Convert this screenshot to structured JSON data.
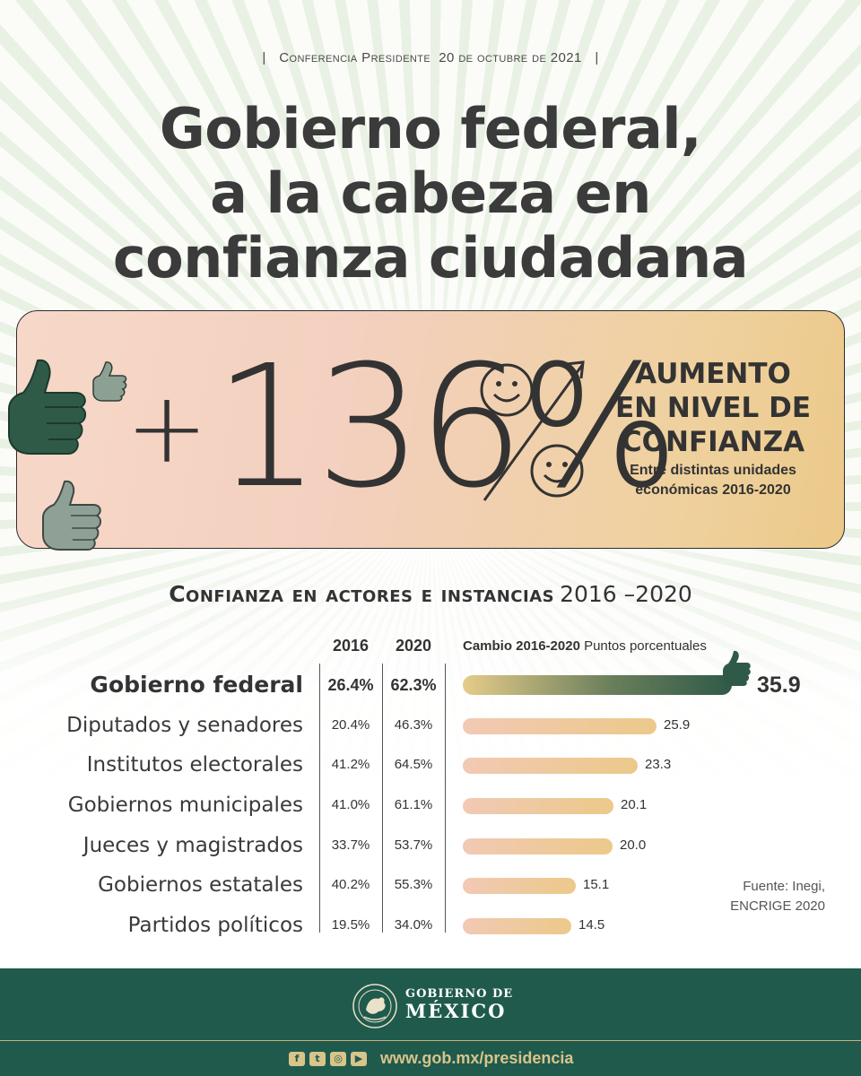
{
  "header": {
    "conference": "Conferencia Presidente  20 de octubre de 2021",
    "divider": "|"
  },
  "title": {
    "line1": "Gobierno federal,",
    "line2": "a la cabeza en",
    "line3": "confianza ciudadana"
  },
  "hero": {
    "plus": "+",
    "value": "136%",
    "heading_line1": "AUMENTO",
    "heading_line2": "EN NIVEL DE",
    "heading_line3": "CONFIANZA",
    "sub_line1": "Entre distintas unidades",
    "sub_line2": "económicas 2016-2020"
  },
  "section": {
    "title": "Confianza en actores e instancias",
    "years": "2016 –2020"
  },
  "table": {
    "col_2016": "2016",
    "col_2020": "2020",
    "cambio_bold": "Cambio 2016-2020",
    "cambio_rest": " Puntos porcentuales",
    "max_change": 35.9,
    "rows": [
      {
        "label": "Gobierno federal",
        "v2016": "26.4%",
        "v2020": "62.3%",
        "change": 35.9,
        "change_label": "35.9"
      },
      {
        "label": "Diputados y senadores",
        "v2016": "20.4%",
        "v2020": "46.3%",
        "change": 25.9,
        "change_label": "25.9"
      },
      {
        "label": "Institutos electorales",
        "v2016": "41.2%",
        "v2020": "64.5%",
        "change": 23.3,
        "change_label": "23.3"
      },
      {
        "label": "Gobiernos municipales",
        "v2016": "41.0%",
        "v2020": "61.1%",
        "change": 20.1,
        "change_label": "20.1"
      },
      {
        "label": "Jueces y magistrados",
        "v2016": "33.7%",
        "v2020": "53.7%",
        "change": 20.0,
        "change_label": "20.0"
      },
      {
        "label": "Gobiernos estatales",
        "v2016": "40.2%",
        "v2020": "55.3%",
        "change": 15.1,
        "change_label": "15.1"
      },
      {
        "label": "Partidos políticos",
        "v2016": "19.5%",
        "v2020": "34.0%",
        "change": 14.5,
        "change_label": "14.5"
      }
    ]
  },
  "source": {
    "line1": "Fuente: Inegi,",
    "line2": "ENCRIGE 2020"
  },
  "footer": {
    "gov_line1": "GOBIERNO DE",
    "gov_line2": "MÉXICO",
    "url": "www.gob.mx/presidencia",
    "social_icons": [
      "facebook-icon",
      "twitter-icon",
      "instagram-icon",
      "youtube-icon"
    ]
  },
  "colors": {
    "dark_green": "#2f5a48",
    "footer_green": "#1f5a4d",
    "gold": "#d9c48a",
    "bar_start": "#f2c9b4",
    "bar_end": "#ecc98a"
  }
}
